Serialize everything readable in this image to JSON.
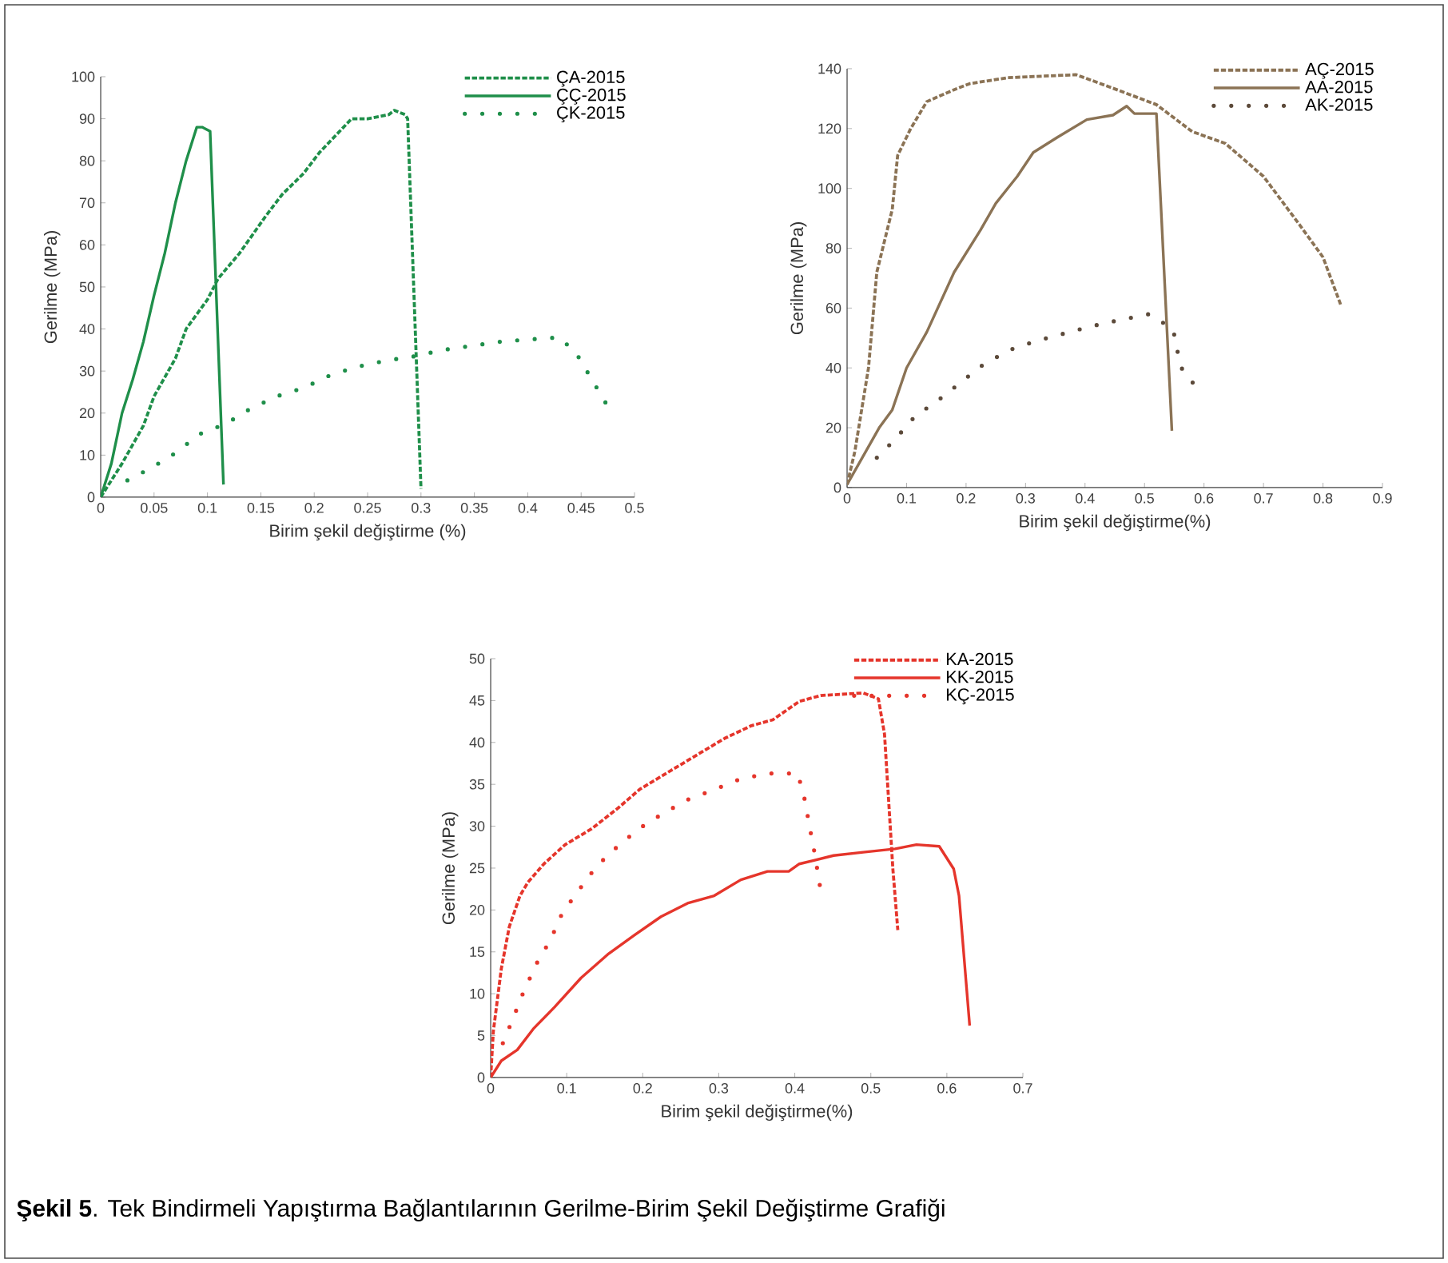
{
  "chart_data": [
    {
      "type": "line",
      "xlabel": "Birim şekil değiştirme (%)",
      "ylabel": "Gerilme (MPa)",
      "xlim": [
        0,
        0.5
      ],
      "ylim": [
        0,
        100
      ],
      "xticks": [
        0,
        0.05,
        0.1,
        0.15,
        0.2,
        0.25,
        0.3,
        0.35,
        0.4,
        0.45,
        0.5
      ],
      "yticks": [
        0,
        10,
        20,
        30,
        40,
        50,
        60,
        70,
        80,
        90,
        100
      ],
      "legend": "top right",
      "series": [
        {
          "name": "ÇA-2015",
          "color": "#1f8f4a",
          "line_style": "dashed",
          "x": [
            0,
            0.02,
            0.04,
            0.05,
            0.07,
            0.08,
            0.1,
            0.11,
            0.13,
            0.155,
            0.17,
            0.19,
            0.205,
            0.22,
            0.235,
            0.25,
            0.27,
            0.275,
            0.285,
            0.2875,
            0.3
          ],
          "values": [
            0,
            8,
            17,
            24,
            33,
            40,
            47,
            52,
            58,
            67,
            72,
            77,
            82,
            86,
            90,
            90,
            91,
            92,
            91,
            90,
            2
          ]
        },
        {
          "name": "ÇÇ-2015",
          "color": "#1f8f4a",
          "line_style": "solid",
          "x": [
            0,
            0.01,
            0.02,
            0.03,
            0.04,
            0.05,
            0.06,
            0.07,
            0.08,
            0.09,
            0.095,
            0.1025,
            0.115
          ],
          "values": [
            0,
            8,
            20,
            28,
            37,
            48,
            58,
            70,
            80,
            88,
            88,
            87,
            3
          ]
        },
        {
          "name": "ÇK-2015",
          "color": "#1f8f4a",
          "line_style": "dotted",
          "x": [
            0.025,
            0.0475,
            0.07,
            0.0925,
            0.1175,
            0.14,
            0.165,
            0.19,
            0.215,
            0.24,
            0.2675,
            0.294,
            0.32,
            0.3475,
            0.375,
            0.4,
            0.43,
            0.446,
            0.46,
            0.474
          ],
          "values": [
            4,
            7,
            10.5,
            15,
            17.5,
            21,
            24,
            26,
            29,
            31,
            32.5,
            33.5,
            35,
            36,
            37,
            37.5,
            38,
            34,
            28,
            22
          ]
        }
      ]
    },
    {
      "type": "line",
      "xlabel": "Birim şekil değiştirme(%)",
      "ylabel": "Gerilme (MPa)",
      "xlim": [
        0,
        0.9
      ],
      "ylim": [
        0,
        140
      ],
      "xticks": [
        0,
        0.1,
        0.2,
        0.3,
        0.4,
        0.5,
        0.6,
        0.7,
        0.8,
        0.9
      ],
      "yticks": [
        0,
        20,
        40,
        60,
        80,
        100,
        120,
        140
      ],
      "legend": "top right",
      "series": [
        {
          "name": "AÇ-2015",
          "color": "#8b7355",
          "line_style": "dashed",
          "x": [
            0,
            0.013,
            0.036,
            0.05,
            0.076,
            0.085,
            0.107,
            0.134,
            0.18,
            0.206,
            0.27,
            0.385,
            0.44,
            0.52,
            0.58,
            0.636,
            0.7,
            0.76,
            0.8,
            0.83
          ],
          "values": [
            1,
            12,
            40,
            72,
            93,
            111,
            120,
            129,
            133,
            135,
            137,
            138,
            134,
            128,
            119,
            115,
            104,
            88,
            77,
            61
          ]
        },
        {
          "name": "AA-2015",
          "color": "#8b7355",
          "line_style": "solid",
          "x": [
            0,
            0.054,
            0.076,
            0.1,
            0.134,
            0.18,
            0.224,
            0.25,
            0.286,
            0.313,
            0.353,
            0.403,
            0.447,
            0.47,
            0.483,
            0.52,
            0.546
          ],
          "values": [
            1,
            20,
            26,
            40,
            52,
            72,
            86,
            95,
            104,
            112,
            117,
            123,
            124.5,
            127.5,
            125,
            125,
            19
          ]
        },
        {
          "name": "AK-2015",
          "color": "#5c4a3a",
          "line_style": "dotted",
          "x": [
            0.05,
            0.08,
            0.115,
            0.152,
            0.19,
            0.228,
            0.273,
            0.318,
            0.365,
            0.412,
            0.458,
            0.508,
            0.548,
            0.557,
            0.562,
            0.589
          ],
          "values": [
            10,
            16,
            24,
            29,
            35,
            41,
            46,
            49,
            51.5,
            54,
            56,
            58,
            53,
            44,
            40,
            33
          ]
        }
      ]
    },
    {
      "type": "line",
      "xlabel": "Birim şekil değiştirme(%)",
      "ylabel": "Gerilme (MPa)",
      "xlim": [
        0,
        0.7
      ],
      "ylim": [
        0,
        50
      ],
      "xticks": [
        0,
        0.1,
        0.2,
        0.3,
        0.4,
        0.5,
        0.6,
        0.7
      ],
      "yticks": [
        0,
        5,
        10,
        15,
        20,
        25,
        30,
        35,
        40,
        45,
        50
      ],
      "legend": "top right",
      "annotations": [
        "**Şekil 5**. Tek Bindirmeli Yapıştırma Bağlantılarının Gerilme-Birim Şekil Değiştirme Grafiği"
      ],
      "series": [
        {
          "name": "KA-2015",
          "color": "#e5352b",
          "line_style": "dashed",
          "x": [
            0,
            0.0035,
            0.014,
            0.0245,
            0.0385,
            0.049,
            0.07,
            0.098,
            0.133,
            0.168,
            0.196,
            0.238,
            0.273,
            0.308,
            0.343,
            0.371,
            0.406,
            0.434,
            0.49,
            0.51,
            0.518,
            0.529,
            0.5355
          ],
          "values": [
            0,
            5.5,
            13,
            18,
            21.7,
            23.3,
            25.5,
            27.8,
            29.7,
            32.2,
            34.4,
            36.7,
            38.6,
            40.5,
            42,
            42.7,
            44.9,
            45.6,
            45.9,
            45.2,
            41,
            24.9,
            17.6
          ]
        },
        {
          "name": "KK-2015",
          "color": "#e5352b",
          "line_style": "solid",
          "x": [
            0,
            0.014,
            0.035,
            0.056,
            0.084,
            0.119,
            0.154,
            0.189,
            0.224,
            0.259,
            0.294,
            0.329,
            0.364,
            0.392,
            0.406,
            0.451,
            0.49,
            0.532,
            0.56,
            0.59,
            0.609,
            0.616,
            0.63
          ],
          "values": [
            0,
            2,
            3.3,
            5.8,
            8.4,
            11.9,
            14.7,
            17,
            19.2,
            20.8,
            21.7,
            23.6,
            24.6,
            24.6,
            25.5,
            26.5,
            26.9,
            27.3,
            27.8,
            27.6,
            24.9,
            21.7,
            6.2
          ]
        },
        {
          "name": "KÇ-2015",
          "color": "#e5352b",
          "line_style": "dotted",
          "x": [
            0.016,
            0.03,
            0.044,
            0.061,
            0.079,
            0.094,
            0.117,
            0.139,
            0.167,
            0.195,
            0.228,
            0.26,
            0.295,
            0.33,
            0.368,
            0.404,
            0.413,
            0.42,
            0.427,
            0.433
          ],
          "values": [
            4.1,
            7.2,
            10.4,
            13.7,
            16.5,
            19.6,
            22.5,
            25.2,
            27.6,
            29.7,
            31.6,
            33.2,
            34.4,
            35.7,
            36.3,
            36.3,
            33.2,
            29.7,
            26.3,
            22.9
          ]
        }
      ]
    }
  ]
}
